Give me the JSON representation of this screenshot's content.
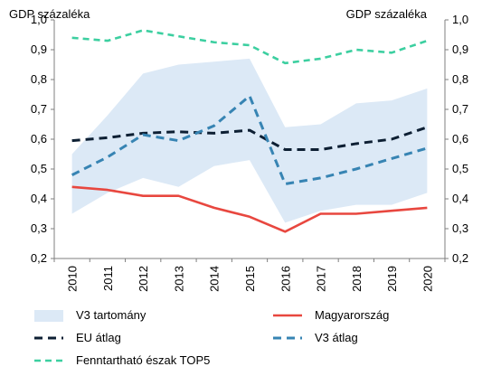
{
  "chart_data": {
    "type": "line",
    "ylabel_left": "GDP százaléka",
    "ylabel_right": "GDP százaléka",
    "ylim": [
      0.2,
      1.0
    ],
    "yticks": [
      "1,0",
      "0,9",
      "0,8",
      "0,7",
      "0,6",
      "0,5",
      "0,4",
      "0,3",
      "0,2"
    ],
    "ytick_values": [
      1.0,
      0.9,
      0.8,
      0.7,
      0.6,
      0.5,
      0.4,
      0.3,
      0.2
    ],
    "categories": [
      "2010",
      "2011",
      "2012",
      "2013",
      "2014",
      "2015",
      "2016",
      "2017",
      "2018",
      "2019",
      "2020"
    ],
    "band": {
      "name": "V3 tartomány",
      "color": "#dce9f6",
      "lower": [
        0.35,
        0.42,
        0.47,
        0.44,
        0.51,
        0.53,
        0.32,
        0.36,
        0.38,
        0.38,
        0.42
      ],
      "upper": [
        0.55,
        0.68,
        0.82,
        0.85,
        0.86,
        0.87,
        0.64,
        0.65,
        0.72,
        0.73,
        0.77
      ]
    },
    "series": [
      {
        "name": "Magyarország",
        "color": "#e8473f",
        "style": "solid",
        "values": [
          0.44,
          0.43,
          0.41,
          0.41,
          0.37,
          0.34,
          0.29,
          0.35,
          0.35,
          0.36,
          0.37
        ]
      },
      {
        "name": "EU átlag",
        "color": "#0d1f33",
        "style": "dash",
        "values": [
          0.595,
          0.605,
          0.62,
          0.625,
          0.62,
          0.63,
          0.565,
          0.565,
          0.585,
          0.6,
          0.64
        ]
      },
      {
        "name": "V3 átlag",
        "color": "#3784b3",
        "style": "dash",
        "values": [
          0.48,
          0.54,
          0.615,
          0.595,
          0.645,
          0.745,
          0.45,
          0.47,
          0.5,
          0.535,
          0.57
        ]
      },
      {
        "name": "Fenntartható észak TOP5",
        "color": "#3ccfa0",
        "style": "dash-small",
        "values": [
          0.94,
          0.93,
          0.965,
          0.945,
          0.925,
          0.915,
          0.855,
          0.87,
          0.9,
          0.89,
          0.93
        ]
      }
    ],
    "legend": {
      "placement": "bottom",
      "items": [
        "V3 tartomány",
        "Magyarország",
        "EU átlag",
        "V3 átlag",
        "Fenntartható észak TOP5"
      ]
    },
    "grid": false
  }
}
